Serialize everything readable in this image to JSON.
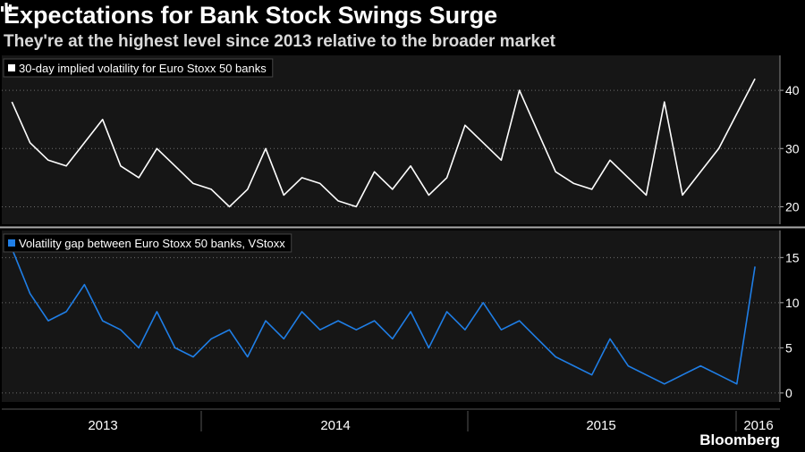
{
  "title": "Expectations for Bank Stock Swings Surge",
  "subtitle": "They're at the highest level since 2013 relative to the broader market",
  "brand": "Bloomberg",
  "colors": {
    "background": "#000000",
    "panel": "#161616",
    "series1": "#ffffff",
    "series2": "#1f7ee6",
    "grid": "#6e6e6e"
  },
  "chart_data": [
    {
      "type": "line",
      "legend": "30-day implied volatility for Euro Stoxx 50 banks",
      "legend_placement": "top-left",
      "ylim": [
        17,
        46
      ],
      "yticks": [
        20,
        30,
        40
      ],
      "grid": true,
      "x": [
        "2012-09",
        "2012-10",
        "2012-11",
        "2012-12",
        "2013-01",
        "2013-02",
        "2013-03",
        "2013-04",
        "2013-05",
        "2013-06",
        "2013-07",
        "2013-08",
        "2013-09",
        "2013-10",
        "2013-11",
        "2013-12",
        "2014-01",
        "2014-02",
        "2014-03",
        "2014-04",
        "2014-05",
        "2014-06",
        "2014-07",
        "2014-08",
        "2014-09",
        "2014-10",
        "2014-11",
        "2014-12",
        "2015-01",
        "2015-02",
        "2015-03",
        "2015-04",
        "2015-05",
        "2015-06",
        "2015-07",
        "2015-08",
        "2015-09",
        "2015-10",
        "2015-11",
        "2015-12",
        "2016-01",
        "2016-02"
      ],
      "y": [
        38,
        31,
        28,
        27,
        31,
        35,
        27,
        25,
        30,
        27,
        24,
        23,
        20,
        23,
        30,
        22,
        25,
        24,
        21,
        20,
        26,
        23,
        27,
        22,
        25,
        34,
        31,
        28,
        40,
        33,
        26,
        24,
        23,
        28,
        25,
        22,
        38,
        22,
        26,
        30,
        36,
        42
      ],
      "xticks": [
        "2013",
        "2014",
        "2015",
        "2016"
      ]
    },
    {
      "type": "line",
      "legend": "Volatility gap between Euro Stoxx 50 banks, VStoxx",
      "legend_placement": "top-left",
      "ylim": [
        -1,
        18
      ],
      "yticks": [
        0,
        5,
        10,
        15
      ],
      "grid": true,
      "x": [
        "2012-09",
        "2012-10",
        "2012-11",
        "2012-12",
        "2013-01",
        "2013-02",
        "2013-03",
        "2013-04",
        "2013-05",
        "2013-06",
        "2013-07",
        "2013-08",
        "2013-09",
        "2013-10",
        "2013-11",
        "2013-12",
        "2014-01",
        "2014-02",
        "2014-03",
        "2014-04",
        "2014-05",
        "2014-06",
        "2014-07",
        "2014-08",
        "2014-09",
        "2014-10",
        "2014-11",
        "2014-12",
        "2015-01",
        "2015-02",
        "2015-03",
        "2015-04",
        "2015-05",
        "2015-06",
        "2015-07",
        "2015-08",
        "2015-09",
        "2015-10",
        "2015-11",
        "2015-12",
        "2016-01",
        "2016-02"
      ],
      "y": [
        16,
        11,
        8,
        9,
        12,
        8,
        7,
        5,
        9,
        5,
        4,
        6,
        7,
        4,
        8,
        6,
        9,
        7,
        8,
        7,
        8,
        6,
        9,
        5,
        9,
        7,
        10,
        7,
        8,
        6,
        4,
        3,
        2,
        6,
        3,
        2,
        1,
        2,
        3,
        2,
        1,
        14
      ],
      "xticks": [
        "2013",
        "2014",
        "2015",
        "2016"
      ]
    }
  ]
}
